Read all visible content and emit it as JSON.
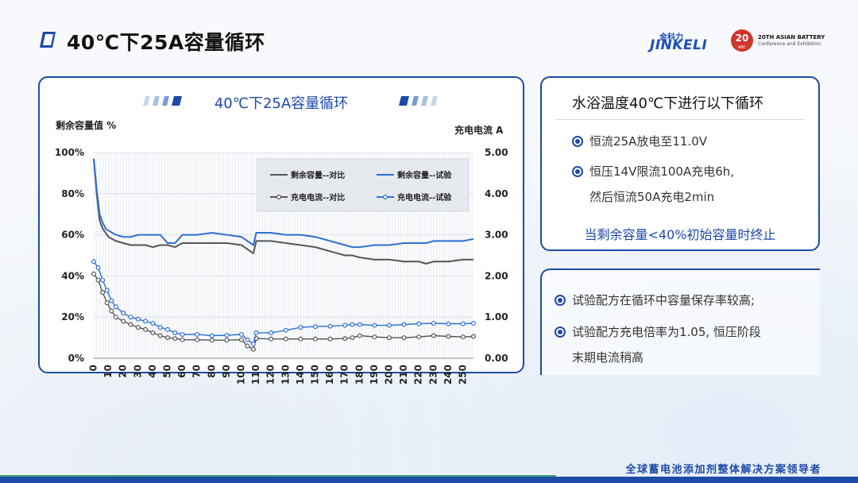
{
  "header": {
    "title": "40℃下25A容量循环"
  },
  "logos": {
    "jinkeli_cn": "金科力",
    "jinkeli_en": "JINKELI",
    "abc_number": "20",
    "abc_small": "ABC",
    "abc_line1": "20TH ASIAN BATTERY",
    "abc_line2": "Conference and Exhibition"
  },
  "left_panel": {
    "chart_title": "40℃下25A容量循环"
  },
  "right_top": {
    "title": "水浴温度40℃下进行以下循环",
    "bullets": [
      "恒流25A放电至11.0V",
      "恒压14V限流100A充电6h,",
      "然后恒流50A充电2min"
    ],
    "note": "当剩余容量<40%初始容量时终止"
  },
  "right_bottom": {
    "bullets": [
      "试验配方在循环中容量保存率较高;",
      "试验配方充电倍率为1.05, 恒压阶段",
      "末期电流稍高"
    ]
  },
  "footer": {
    "slogan": "全球蓄电池添加剂整体解决方案领导者"
  },
  "colors": {
    "accent": "#1e4aa8",
    "series_test": "#2f6fd1",
    "series_ctrl": "#555555"
  },
  "chart_data": {
    "type": "line",
    "y1label": "剩余容量值 %",
    "y2label": "充电电流 A",
    "xlim": [
      0,
      257
    ],
    "y1lim": [
      0,
      100
    ],
    "y2lim": [
      0,
      5
    ],
    "y1ticks": [
      "0%",
      "20%",
      "40%",
      "60%",
      "80%",
      "100%"
    ],
    "y2ticks": [
      "0.00",
      "1.00",
      "2.00",
      "3.00",
      "4.00",
      "5.00"
    ],
    "xticks": [
      0,
      10,
      20,
      30,
      40,
      50,
      60,
      70,
      80,
      90,
      100,
      110,
      120,
      130,
      140,
      150,
      160,
      170,
      180,
      190,
      200,
      210,
      220,
      230,
      240,
      250
    ],
    "grid": true,
    "legend_position": "top-right",
    "series": [
      {
        "name": "剩余容量--对比",
        "axis": "y1",
        "marker": false,
        "color": "#555555",
        "x": [
          0,
          2,
          4,
          6,
          8,
          10,
          15,
          20,
          25,
          30,
          35,
          40,
          45,
          50,
          55,
          60,
          70,
          80,
          90,
          100,
          104,
          108,
          110,
          120,
          130,
          140,
          150,
          160,
          170,
          175,
          180,
          190,
          200,
          210,
          220,
          225,
          230,
          240,
          250,
          257
        ],
        "y": [
          97,
          80,
          67,
          63,
          61,
          59,
          57,
          56,
          55,
          55,
          55,
          54,
          55,
          55,
          54,
          56,
          56,
          56,
          56,
          55,
          53,
          51,
          57,
          57,
          56,
          55,
          54,
          52,
          50,
          50,
          49,
          48,
          48,
          47,
          47,
          46,
          47,
          47,
          48,
          48
        ]
      },
      {
        "name": "剩余容量--试验",
        "axis": "y1",
        "marker": false,
        "color": "#2f6fd1",
        "x": [
          0,
          2,
          4,
          6,
          8,
          10,
          15,
          20,
          25,
          30,
          35,
          40,
          45,
          50,
          55,
          60,
          70,
          80,
          90,
          100,
          104,
          108,
          110,
          120,
          130,
          140,
          150,
          160,
          170,
          175,
          180,
          190,
          200,
          210,
          220,
          225,
          230,
          240,
          250,
          257
        ],
        "y": [
          97,
          82,
          70,
          66,
          63,
          62,
          60,
          59,
          59,
          60,
          60,
          60,
          60,
          56,
          56,
          60,
          60,
          61,
          60,
          59,
          57,
          55,
          61,
          61,
          60,
          60,
          59,
          57,
          55,
          54,
          54,
          55,
          55,
          56,
          56,
          56,
          57,
          57,
          57,
          58
        ]
      },
      {
        "name": "充电电流--对比",
        "axis": "y2",
        "marker": true,
        "color": "#555555",
        "x": [
          0,
          3,
          6,
          9,
          12,
          15,
          20,
          25,
          30,
          35,
          40,
          45,
          50,
          55,
          60,
          70,
          80,
          90,
          100,
          104,
          108,
          110,
          120,
          130,
          140,
          150,
          160,
          170,
          175,
          180,
          190,
          200,
          210,
          220,
          230,
          240,
          250,
          257
        ],
        "y": [
          2.05,
          1.9,
          1.6,
          1.35,
          1.15,
          1.0,
          0.9,
          0.82,
          0.75,
          0.7,
          0.62,
          0.55,
          0.5,
          0.48,
          0.45,
          0.45,
          0.44,
          0.44,
          0.45,
          0.3,
          0.22,
          0.48,
          0.47,
          0.47,
          0.47,
          0.47,
          0.47,
          0.48,
          0.5,
          0.55,
          0.52,
          0.5,
          0.5,
          0.52,
          0.55,
          0.53,
          0.52,
          0.53
        ]
      },
      {
        "name": "充电电流--试验",
        "axis": "y2",
        "marker": true,
        "color": "#2f6fd1",
        "x": [
          0,
          3,
          6,
          9,
          12,
          15,
          20,
          25,
          30,
          35,
          40,
          45,
          50,
          55,
          60,
          70,
          80,
          90,
          100,
          104,
          108,
          110,
          120,
          130,
          140,
          150,
          160,
          170,
          175,
          180,
          190,
          200,
          210,
          220,
          230,
          240,
          250,
          257
        ],
        "y": [
          2.35,
          2.2,
          1.9,
          1.65,
          1.4,
          1.25,
          1.1,
          1.0,
          0.95,
          0.9,
          0.85,
          0.75,
          0.7,
          0.62,
          0.58,
          0.58,
          0.55,
          0.56,
          0.58,
          0.45,
          0.35,
          0.62,
          0.62,
          0.68,
          0.75,
          0.77,
          0.78,
          0.8,
          0.82,
          0.82,
          0.8,
          0.8,
          0.82,
          0.84,
          0.85,
          0.84,
          0.84,
          0.85
        ]
      }
    ]
  }
}
